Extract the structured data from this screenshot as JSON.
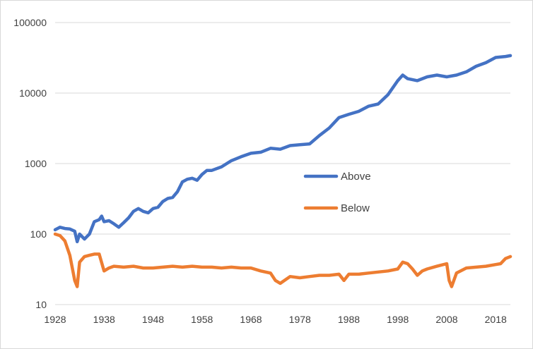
{
  "chart_data": {
    "type": "line",
    "title": "",
    "xlabel": "",
    "ylabel": "",
    "y_scale": "log",
    "ylim": [
      10,
      100000
    ],
    "xlim": [
      1928,
      2021
    ],
    "grid": "horizontal",
    "legend_position": "center-right",
    "y_ticks": [
      "10",
      "100",
      "1000",
      "10000",
      "100000"
    ],
    "x_ticks": [
      "1928",
      "1938",
      "1948",
      "1958",
      "1968",
      "1978",
      "1988",
      "1998",
      "2008",
      "2018"
    ],
    "series": [
      {
        "name": "Above",
        "color": "#4472C4",
        "x": [
          1928,
          1929,
          1930,
          1931,
          1932,
          1932.5,
          1933,
          1934,
          1935,
          1936,
          1937,
          1937.5,
          1938,
          1939,
          1940,
          1941,
          1942,
          1943,
          1944,
          1945,
          1946,
          1947,
          1948,
          1949,
          1950,
          1951,
          1952,
          1953,
          1954,
          1955,
          1956,
          1957,
          1958,
          1959,
          1960,
          1962,
          1964,
          1966,
          1968,
          1970,
          1972,
          1974,
          1976,
          1978,
          1980,
          1982,
          1984,
          1986,
          1988,
          1990,
          1992,
          1994,
          1996,
          1998,
          1999,
          2000,
          2002,
          2004,
          2006,
          2008,
          2010,
          2012,
          2014,
          2016,
          2018,
          2020,
          2021
        ],
        "values": [
          115,
          125,
          120,
          118,
          110,
          78,
          100,
          85,
          100,
          150,
          160,
          180,
          150,
          155,
          140,
          125,
          145,
          170,
          210,
          230,
          210,
          200,
          230,
          240,
          290,
          320,
          330,
          400,
          550,
          600,
          620,
          580,
          700,
          800,
          800,
          900,
          1100,
          1250,
          1400,
          1450,
          1650,
          1600,
          1800,
          1850,
          1900,
          2500,
          3200,
          4500,
          5000,
          5500,
          6500,
          7000,
          9500,
          15000,
          18000,
          16000,
          15000,
          17000,
          18000,
          17000,
          18000,
          20000,
          24000,
          27000,
          32000,
          33000,
          34000
        ]
      },
      {
        "name": "Below",
        "color": "#ED7D31",
        "x": [
          1928,
          1929,
          1930,
          1931,
          1932,
          1932.5,
          1933,
          1934,
          1935,
          1936,
          1937,
          1938,
          1939,
          1940,
          1942,
          1944,
          1946,
          1948,
          1950,
          1952,
          1954,
          1956,
          1958,
          1960,
          1962,
          1964,
          1966,
          1968,
          1970,
          1972,
          1973,
          1974,
          1976,
          1978,
          1980,
          1982,
          1984,
          1986,
          1987,
          1988,
          1990,
          1992,
          1994,
          1996,
          1998,
          1999,
          2000,
          2001,
          2002,
          2003,
          2004,
          2006,
          2008,
          2008.5,
          2009,
          2010,
          2012,
          2014,
          2016,
          2018,
          2019,
          2020,
          2021
        ],
        "values": [
          100,
          95,
          80,
          50,
          22,
          18,
          40,
          48,
          50,
          52,
          52,
          30,
          33,
          35,
          34,
          35,
          33,
          33,
          34,
          35,
          34,
          35,
          34,
          34,
          33,
          34,
          33,
          33,
          30,
          28,
          22,
          20,
          25,
          24,
          25,
          26,
          26,
          27,
          22,
          27,
          27,
          28,
          29,
          30,
          32,
          40,
          38,
          32,
          26,
          30,
          32,
          35,
          38,
          22,
          18,
          28,
          33,
          34,
          35,
          37,
          38,
          45,
          48
        ]
      }
    ]
  }
}
